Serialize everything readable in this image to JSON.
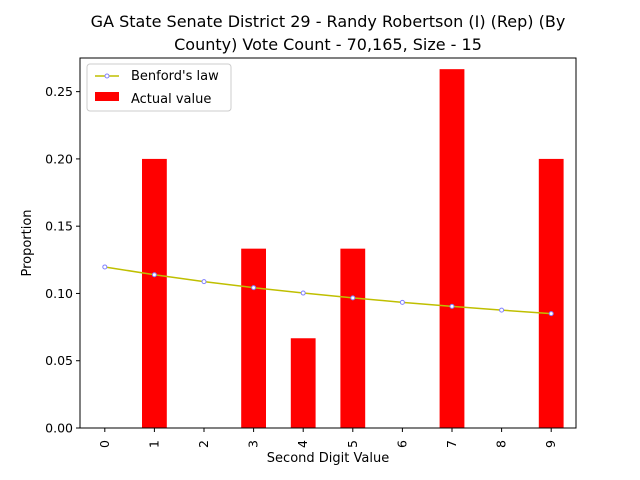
{
  "chart_data": {
    "type": "bar",
    "title_lines": [
      "GA State Senate District 29 - Randy Robertson (I) (Rep) (By",
      "County) Vote Count - 70,165, Size - 15"
    ],
    "xlabel": "Second Digit Value",
    "ylabel": "Proportion",
    "categories": [
      "0",
      "1",
      "2",
      "3",
      "4",
      "5",
      "6",
      "7",
      "8",
      "9"
    ],
    "ylim": [
      0,
      0.275
    ],
    "yticks": [
      "0.00",
      "0.05",
      "0.10",
      "0.15",
      "0.20",
      "0.25"
    ],
    "ytick_values": [
      0,
      0.05,
      0.1,
      0.15,
      0.2,
      0.25
    ],
    "legend_position": "top-left",
    "grid": false,
    "series": [
      {
        "name": "Actual value",
        "kind": "bar",
        "color": "#ff0000",
        "values": [
          0,
          0.2,
          0,
          0.1333,
          0.0667,
          0.1333,
          0,
          0.2667,
          0,
          0.2
        ]
      },
      {
        "name": "Benford's law",
        "kind": "line",
        "color": "#bfbf00",
        "marker_color": "#8080ff",
        "values": [
          0.1197,
          0.1139,
          0.1088,
          0.1043,
          0.1003,
          0.0967,
          0.0934,
          0.0904,
          0.0876,
          0.085
        ]
      }
    ]
  }
}
